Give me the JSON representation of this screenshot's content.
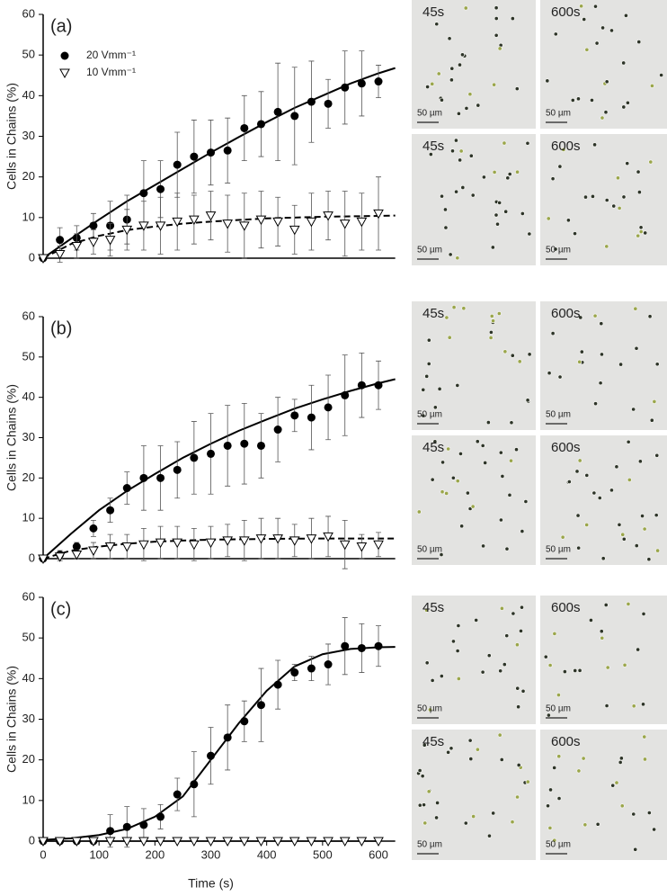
{
  "chart_data": [
    {
      "type": "scatter",
      "panel_label": "(a)",
      "ylabel": "Cells in Chains (%)",
      "xlim": [
        0,
        630
      ],
      "ylim": [
        0,
        60
      ],
      "yticks": [
        0,
        10,
        20,
        30,
        40,
        50,
        60
      ],
      "legend": "upper left",
      "x": [
        0,
        30,
        60,
        90,
        120,
        150,
        180,
        210,
        240,
        270,
        300,
        330,
        360,
        390,
        420,
        450,
        480,
        510,
        540,
        570,
        600
      ],
      "series": [
        {
          "name": "20 Vmm⁻¹",
          "color": "#000000",
          "marker": "circle",
          "line_style": "solid",
          "values": [
            0,
            4.5,
            5,
            8,
            8,
            9.5,
            16,
            17,
            23,
            25,
            26,
            26.5,
            32,
            33,
            36,
            35,
            38.5,
            38,
            42,
            43,
            43.5
          ],
          "errors": [
            0,
            3,
            3,
            3,
            6,
            6,
            8,
            7,
            8,
            9,
            8,
            8,
            8,
            8,
            12,
            12,
            10,
            6,
            9,
            8,
            4
          ],
          "fit": {
            "x": [
              0,
              50,
              100,
              150,
              200,
              250,
              300,
              350,
              400,
              450,
              500,
              550,
              600,
              630
            ],
            "values": [
              0,
              4.8,
              9.5,
              14,
              18,
              22,
              26,
              29.8,
              33.5,
              37,
              40,
              43,
              45.5,
              46.8
            ]
          }
        },
        {
          "name": "10 Vmm⁻¹",
          "color": "#000000",
          "marker": "triangle-down",
          "line_style": "dashed",
          "values": [
            0,
            1,
            3,
            4,
            4.5,
            7,
            8,
            8,
            9,
            9.5,
            10.5,
            8.5,
            8,
            9.5,
            9,
            7,
            9,
            10.5,
            8.5,
            9,
            11
          ],
          "errors": [
            0,
            2,
            3,
            3,
            4,
            5,
            6,
            7,
            7,
            6,
            6,
            7,
            8,
            7,
            6,
            6,
            7,
            6,
            8,
            7,
            9
          ],
          "fit": {
            "x": [
              0,
              50,
              100,
              150,
              200,
              250,
              300,
              350,
              400,
              450,
              500,
              550,
              600,
              630
            ],
            "values": [
              0,
              3.5,
              5.5,
              6.9,
              7.8,
              8.5,
              9,
              9.4,
              9.8,
              10,
              10.2,
              10.3,
              10.4,
              10.5
            ]
          }
        }
      ]
    },
    {
      "type": "scatter",
      "panel_label": "(b)",
      "ylabel": "Cells in Chains (%)",
      "xlim": [
        0,
        630
      ],
      "ylim": [
        0,
        60
      ],
      "yticks": [
        0,
        10,
        20,
        30,
        40,
        50,
        60
      ],
      "x": [
        0,
        30,
        60,
        90,
        120,
        150,
        180,
        210,
        240,
        270,
        300,
        330,
        360,
        390,
        420,
        450,
        480,
        510,
        540,
        570,
        600
      ],
      "series": [
        {
          "color": "#000000",
          "marker": "circle",
          "line_style": "solid",
          "values": [
            0,
            1,
            3,
            7.5,
            12,
            17.5,
            20,
            20,
            22,
            25,
            26,
            28,
            28.5,
            28,
            32,
            35.5,
            35,
            37.5,
            40.5,
            43,
            43
          ],
          "errors": [
            0,
            1,
            1,
            2,
            3,
            4,
            8,
            8,
            7,
            9,
            10,
            10,
            10,
            8,
            8,
            4,
            8,
            8,
            10,
            8,
            6
          ],
          "fit": {
            "x": [
              0,
              50,
              100,
              150,
              200,
              250,
              300,
              350,
              400,
              450,
              500,
              550,
              600,
              630
            ],
            "values": [
              0,
              6.2,
              12,
              16.8,
              21,
              25,
              28.5,
              31.7,
              34.5,
              37.2,
              39.5,
              41.6,
              43.5,
              44.5
            ]
          }
        },
        {
          "color": "#000000",
          "marker": "triangle-down",
          "line_style": "dashed",
          "values": [
            0,
            0.5,
            1,
            2,
            3,
            3,
            3.5,
            4,
            4,
            3.5,
            4,
            4.5,
            4.5,
            5,
            5,
            4.5,
            5,
            5.5,
            3.5,
            3,
            3.5
          ],
          "errors": [
            0,
            1,
            1,
            2,
            3,
            3,
            4,
            4,
            4,
            4,
            4,
            4,
            5,
            5,
            5,
            4,
            5,
            5,
            6,
            3,
            3
          ],
          "fit": {
            "x": [
              0,
              50,
              100,
              150,
              200,
              250,
              300,
              350,
              400,
              450,
              500,
              550,
              600,
              630
            ],
            "values": [
              0,
              2,
              3,
              3.7,
              4.2,
              4.5,
              4.7,
              4.8,
              4.9,
              4.95,
              5,
              5,
              5,
              5
            ]
          }
        }
      ]
    },
    {
      "type": "scatter",
      "panel_label": "(c)",
      "ylabel": "Cells in Chains (%)",
      "xlabel": "Time (s)",
      "xlim": [
        0,
        630
      ],
      "xticks": [
        0,
        100,
        200,
        300,
        400,
        500,
        600
      ],
      "ylim": [
        0,
        60
      ],
      "yticks": [
        0,
        10,
        20,
        30,
        40,
        50,
        60
      ],
      "x": [
        0,
        30,
        60,
        90,
        120,
        150,
        180,
        210,
        240,
        270,
        300,
        330,
        360,
        390,
        420,
        450,
        480,
        510,
        540,
        570,
        600
      ],
      "series": [
        {
          "color": "#000000",
          "marker": "circle",
          "line_style": "solid",
          "values": [
            0,
            0,
            0,
            0,
            2.5,
            3.5,
            4,
            6,
            11.5,
            14,
            21,
            25.5,
            29.5,
            33.5,
            38.5,
            41.5,
            42.5,
            43.5,
            48,
            47.5,
            48
          ],
          "errors": [
            0,
            0,
            0,
            0,
            4,
            5,
            4,
            3,
            4,
            8,
            7,
            8,
            5,
            9,
            6,
            2,
            3,
            5,
            7,
            6,
            5
          ],
          "fit": {
            "x": [
              0,
              50,
              100,
              150,
              200,
              250,
              300,
              350,
              400,
              450,
              500,
              550,
              600,
              630
            ],
            "values": [
              0.3,
              0.7,
              1.5,
              3,
              6,
              11,
              20,
              29,
              37,
              43,
              46,
              47.3,
              47.7,
              47.8
            ]
          }
        },
        {
          "color": "#000000",
          "marker": "triangle-down",
          "line_style": "solid",
          "values": [
            0,
            0,
            0,
            0,
            0,
            0,
            0,
            0,
            0,
            0,
            0,
            0,
            0,
            0,
            0,
            0,
            0,
            0,
            0,
            0,
            0
          ]
        }
      ]
    }
  ],
  "micrographs": [
    {
      "label": "45s",
      "scale_label": "50 µm"
    },
    {
      "label": "600s",
      "scale_label": "50 µm"
    },
    {
      "label": "45s",
      "scale_label": "50 µm"
    },
    {
      "label": "600s",
      "scale_label": "50 µm"
    },
    {
      "label": "45s",
      "scale_label": "50 µm"
    },
    {
      "label": "600s",
      "scale_label": "50 µm"
    },
    {
      "label": "45s",
      "scale_label": "50 µm"
    },
    {
      "label": "600s",
      "scale_label": "50 µm"
    },
    {
      "label": "45s",
      "scale_label": "50 µm"
    },
    {
      "label": "600s",
      "scale_label": "50 µm"
    },
    {
      "label": "45s",
      "scale_label": "50 µm"
    },
    {
      "label": "600s",
      "scale_label": "50 µm"
    }
  ]
}
